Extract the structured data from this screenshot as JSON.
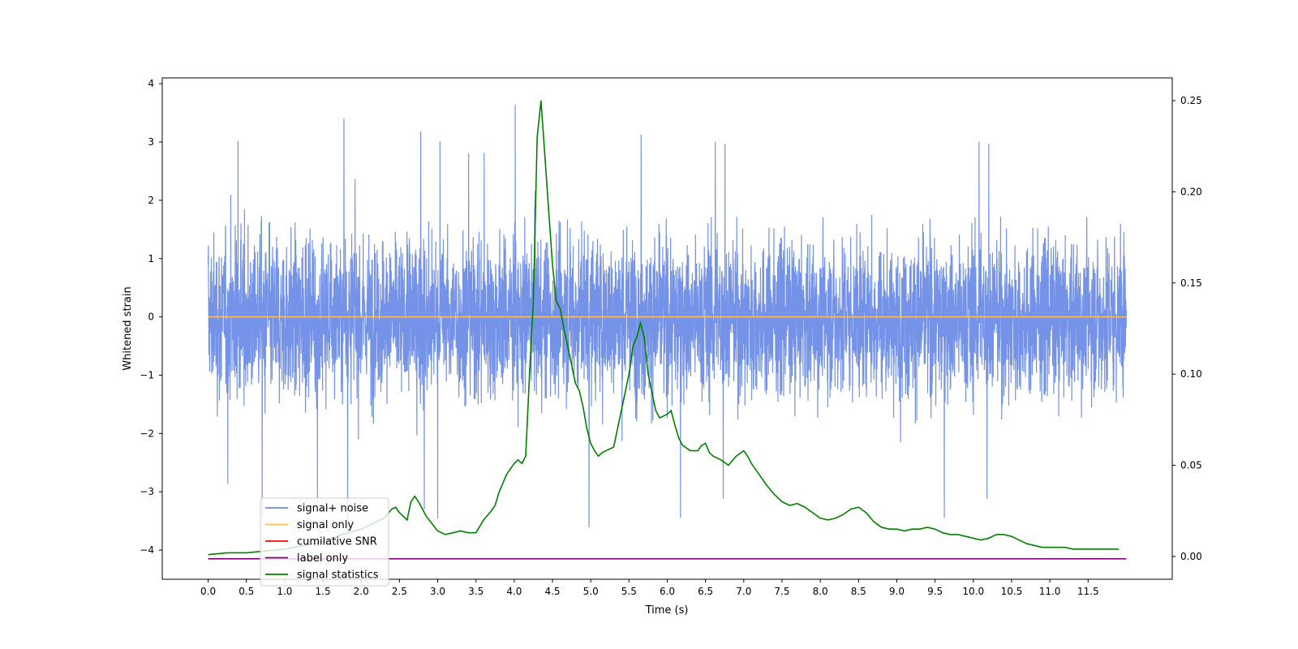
{
  "chart_data": {
    "type": "line",
    "title": "",
    "xlabel": "Time (s)",
    "ylabel": "Whitened strain",
    "xlim": [
      -0.6,
      12.6
    ],
    "ylim": [
      -4.5,
      4.1
    ],
    "y2lim": [
      -0.0125,
      0.2625
    ],
    "xticks": [
      "0.0",
      "0.5",
      "1.0",
      "1.5",
      "2.0",
      "2.5",
      "3.0",
      "3.5",
      "4.0",
      "4.5",
      "5.0",
      "5.5",
      "6.0",
      "6.5",
      "7.0",
      "7.5",
      "8.0",
      "8.5",
      "9.0",
      "9.5",
      "10.0",
      "10.5",
      "11.0",
      "11.5"
    ],
    "yticks": [
      "4",
      "3",
      "2",
      "1",
      "0",
      "−1",
      "−2",
      "−3",
      "−4"
    ],
    "y2ticks": [
      "0.25",
      "0.20",
      "0.15",
      "0.10",
      "0.05",
      "0.00"
    ],
    "legend_position": "lower-left",
    "series": [
      {
        "name": "signal+ noise",
        "color": "#6d8ce6",
        "axis": "left",
        "x_range": [
          0,
          12
        ],
        "values_range": [
          -4.1,
          3.7
        ],
        "note_style": "dense noise band"
      },
      {
        "name": "signal only",
        "color": "#ffbf5f",
        "axis": "left",
        "x": [
          0,
          12
        ],
        "values": [
          0,
          0
        ]
      },
      {
        "name": "cumilative SNR",
        "color": "#ff0000",
        "axis": "right",
        "x": [],
        "values": []
      },
      {
        "name": "label only",
        "color": "#800080",
        "axis": "left",
        "x": [
          0,
          12
        ],
        "values": [
          -4.15,
          -4.15
        ]
      },
      {
        "name": "signal statistics",
        "color": "#008000",
        "axis": "right",
        "x": [
          0.0,
          0.25,
          0.5,
          0.75,
          1.0,
          1.25,
          1.5,
          1.75,
          2.0,
          2.15,
          2.3,
          2.4,
          2.45,
          2.5,
          2.55,
          2.6,
          2.65,
          2.7,
          2.75,
          2.85,
          3.0,
          3.1,
          3.2,
          3.3,
          3.4,
          3.5,
          3.6,
          3.7,
          3.75,
          3.8,
          3.85,
          3.9,
          4.0,
          4.05,
          4.1,
          4.15,
          4.2,
          4.25,
          4.3,
          4.35,
          4.4,
          4.45,
          4.5,
          4.55,
          4.6,
          4.65,
          4.7,
          4.75,
          4.8,
          4.85,
          4.9,
          4.95,
          5.0,
          5.05,
          5.1,
          5.15,
          5.2,
          5.3,
          5.4,
          5.5,
          5.55,
          5.6,
          5.65,
          5.7,
          5.75,
          5.8,
          5.85,
          5.9,
          6.0,
          6.05,
          6.1,
          6.15,
          6.2,
          6.3,
          6.4,
          6.45,
          6.5,
          6.55,
          6.6,
          6.7,
          6.8,
          6.9,
          7.0,
          7.05,
          7.1,
          7.15,
          7.2,
          7.3,
          7.4,
          7.5,
          7.6,
          7.7,
          7.8,
          7.9,
          8.0,
          8.1,
          8.2,
          8.3,
          8.4,
          8.5,
          8.6,
          8.7,
          8.8,
          8.9,
          9.0,
          9.1,
          9.2,
          9.3,
          9.4,
          9.5,
          9.6,
          9.7,
          9.8,
          9.9,
          10.0,
          10.1,
          10.2,
          10.3,
          10.4,
          10.5,
          10.6,
          10.7,
          10.8,
          10.9,
          11.0,
          11.1,
          11.2,
          11.3,
          11.4,
          11.5,
          11.6,
          11.7,
          11.8,
          11.9
        ],
        "values": [
          0.001,
          0.002,
          0.002,
          0.003,
          0.004,
          0.006,
          0.008,
          0.012,
          0.015,
          0.018,
          0.021,
          0.026,
          0.027,
          0.024,
          0.022,
          0.02,
          0.03,
          0.033,
          0.03,
          0.022,
          0.014,
          0.012,
          0.013,
          0.014,
          0.013,
          0.013,
          0.02,
          0.025,
          0.028,
          0.035,
          0.04,
          0.045,
          0.051,
          0.053,
          0.051,
          0.055,
          0.1,
          0.14,
          0.23,
          0.25,
          0.22,
          0.19,
          0.16,
          0.14,
          0.136,
          0.125,
          0.115,
          0.105,
          0.095,
          0.091,
          0.082,
          0.07,
          0.062,
          0.058,
          0.055,
          0.057,
          0.058,
          0.06,
          0.08,
          0.1,
          0.115,
          0.12,
          0.128,
          0.12,
          0.1,
          0.09,
          0.08,
          0.076,
          0.078,
          0.08,
          0.072,
          0.065,
          0.061,
          0.058,
          0.058,
          0.061,
          0.062,
          0.057,
          0.055,
          0.053,
          0.05,
          0.055,
          0.058,
          0.055,
          0.051,
          0.048,
          0.045,
          0.039,
          0.034,
          0.03,
          0.028,
          0.029,
          0.027,
          0.024,
          0.021,
          0.02,
          0.021,
          0.023,
          0.026,
          0.027,
          0.024,
          0.019,
          0.016,
          0.015,
          0.015,
          0.014,
          0.015,
          0.015,
          0.016,
          0.015,
          0.013,
          0.012,
          0.012,
          0.011,
          0.01,
          0.009,
          0.01,
          0.012,
          0.012,
          0.011,
          0.009,
          0.007,
          0.006,
          0.005,
          0.005,
          0.005,
          0.005,
          0.004,
          0.004,
          0.004,
          0.004,
          0.004,
          0.004,
          0.004
        ]
      }
    ]
  }
}
